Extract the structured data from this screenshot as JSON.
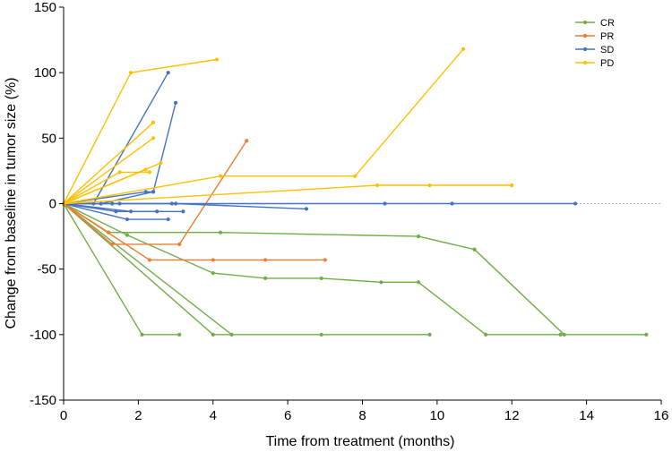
{
  "chart_data": {
    "type": "line",
    "title": "",
    "xlabel": "Time from treatment (months)",
    "ylabel": "Change from baseline in tumor size (%)",
    "xlim": [
      0,
      16
    ],
    "ylim": [
      -150,
      150
    ],
    "x_ticks": [
      "0",
      "2",
      "4",
      "6",
      "8",
      "10",
      "12",
      "14",
      "16"
    ],
    "y_ticks": [
      "-150",
      "-100",
      "-50",
      "0",
      "50",
      "100",
      "150"
    ],
    "reference_line": {
      "y": 0,
      "style": "dashed"
    },
    "legend": {
      "position": "top-right",
      "entries": [
        {
          "name": "CR",
          "color": "#70AD47"
        },
        {
          "name": "PR",
          "color": "#ED7D31"
        },
        {
          "name": "SD",
          "color": "#4472C4"
        },
        {
          "name": "PD",
          "color": "#FFC000"
        }
      ]
    },
    "series": [
      {
        "name": "CR",
        "color": "#70AD47",
        "patients": [
          [
            [
              0,
              0
            ],
            [
              1.2,
              -22
            ],
            [
              4.2,
              -22
            ],
            [
              9.5,
              -25
            ],
            [
              11.0,
              -35
            ],
            [
              13.4,
              -100
            ],
            [
              15.6,
              -100
            ]
          ],
          [
            [
              0,
              0
            ],
            [
              1.7,
              -24
            ],
            [
              4.0,
              -53
            ],
            [
              5.4,
              -57
            ],
            [
              6.9,
              -57
            ],
            [
              8.5,
              -60
            ],
            [
              9.5,
              -60
            ],
            [
              11.3,
              -100
            ],
            [
              13.3,
              -100
            ]
          ],
          [
            [
              0,
              0
            ],
            [
              2.1,
              -100
            ],
            [
              3.1,
              -100
            ]
          ],
          [
            [
              0,
              0
            ],
            [
              4.0,
              -100
            ],
            [
              6.9,
              -100
            ],
            [
              9.8,
              -100
            ]
          ],
          [
            [
              0,
              0
            ],
            [
              4.5,
              -100
            ]
          ]
        ]
      },
      {
        "name": "PR",
        "color": "#ED7D31",
        "patients": [
          [
            [
              0,
              0
            ],
            [
              1.3,
              -31
            ],
            [
              3.1,
              -31
            ],
            [
              4.9,
              48
            ]
          ],
          [
            [
              0,
              0
            ],
            [
              2.3,
              -43
            ],
            [
              4.0,
              -43
            ],
            [
              5.4,
              -43
            ],
            [
              7.0,
              -43
            ]
          ],
          [
            [
              0,
              0
            ],
            [
              1.2,
              -22
            ]
          ]
        ]
      },
      {
        "name": "SD",
        "color": "#4472C4",
        "patients": [
          [
            [
              0,
              0
            ],
            [
              0.8,
              0
            ],
            [
              2.8,
              100
            ]
          ],
          [
            [
              0,
              0
            ],
            [
              1.0,
              0
            ],
            [
              2.4,
              9
            ],
            [
              3.0,
              77
            ]
          ],
          [
            [
              0,
              0
            ],
            [
              1.3,
              0
            ],
            [
              2.9,
              0
            ],
            [
              8.6,
              0
            ],
            [
              10.4,
              0
            ],
            [
              13.7,
              0
            ]
          ],
          [
            [
              0,
              0
            ],
            [
              1.5,
              0
            ],
            [
              3.0,
              0
            ],
            [
              6.5,
              -4
            ]
          ],
          [
            [
              0,
              0
            ],
            [
              1.4,
              -6
            ],
            [
              3.2,
              -6
            ]
          ],
          [
            [
              0,
              0
            ],
            [
              1.8,
              -6
            ],
            [
              2.5,
              -6
            ]
          ],
          [
            [
              0,
              0
            ],
            [
              1.7,
              -12
            ],
            [
              2.8,
              -12
            ]
          ],
          [
            [
              0,
              0
            ],
            [
              2.2,
              9
            ],
            [
              2.4,
              9
            ]
          ]
        ]
      },
      {
        "name": "PD",
        "color": "#FFC000",
        "patients": [
          [
            [
              0,
              0
            ],
            [
              1.8,
              100
            ],
            [
              4.1,
              110
            ]
          ],
          [
            [
              0,
              0
            ],
            [
              2.4,
              62
            ]
          ],
          [
            [
              0,
              0
            ],
            [
              2.4,
              50
            ]
          ],
          [
            [
              0,
              0
            ],
            [
              2.6,
              31
            ]
          ],
          [
            [
              0,
              0
            ],
            [
              2.2,
              26
            ]
          ],
          [
            [
              0,
              0
            ],
            [
              1.5,
              24
            ],
            [
              2.3,
              24
            ]
          ],
          [
            [
              0,
              0
            ],
            [
              4.2,
              21
            ],
            [
              7.8,
              21
            ],
            [
              10.7,
              118
            ]
          ],
          [
            [
              0,
              0
            ],
            [
              8.4,
              14
            ],
            [
              9.8,
              14
            ],
            [
              12.0,
              14
            ]
          ]
        ]
      }
    ]
  }
}
